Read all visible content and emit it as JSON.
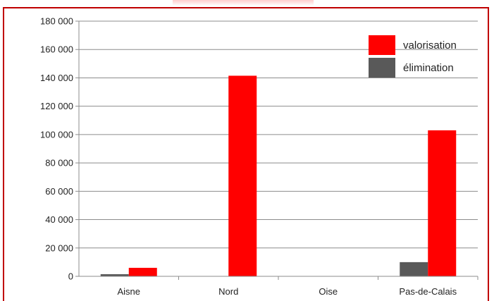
{
  "chart_data": {
    "type": "bar",
    "title": "",
    "xlabel": "",
    "ylabel": "",
    "categories": [
      "Aisne",
      "Nord",
      "Oise",
      "Pas-de-Calais"
    ],
    "series": [
      {
        "name": "élimination",
        "color": "#595959",
        "values": [
          1500,
          0,
          0,
          10000
        ]
      },
      {
        "name": "valorisation",
        "color": "#ff0000",
        "values": [
          6000,
          141500,
          0,
          103000
        ]
      }
    ],
    "ylim": [
      0,
      180000
    ],
    "yticks": [
      0,
      20000,
      40000,
      60000,
      80000,
      100000,
      120000,
      140000,
      160000,
      180000
    ],
    "ytick_labels": [
      "0",
      "20 000",
      "40 000",
      "60 000",
      "80 000",
      "100 000",
      "120 000",
      "140 000",
      "160 000",
      "180 000"
    ],
    "grid": true,
    "legend_position": "top-right",
    "legend_order": [
      "valorisation",
      "élimination"
    ]
  }
}
